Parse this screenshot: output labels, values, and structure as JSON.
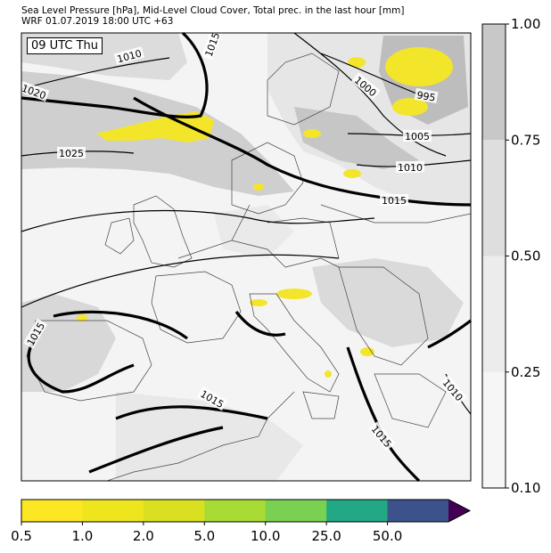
{
  "header": {
    "line1": "Sea Level Pressure [hPa], Mid-Level Cloud Cover, Total prec. in the last hour [mm]",
    "line2": "WRF 01.07.2019 18:00 UTC +63"
  },
  "map": {
    "valid_time": "09 UTC Thu",
    "isobar_labels": [
      "1010",
      "1015",
      "1020",
      "1025",
      "1000",
      "995",
      "1005",
      "1010",
      "1015",
      "1015",
      "1015",
      "1015",
      "1010"
    ]
  },
  "cloud_colorbar": {
    "ticks": [
      "1.00",
      "0.75",
      "0.50",
      "0.25",
      "0.10"
    ],
    "colors": [
      "#c8c8c8",
      "#dedede",
      "#ececec",
      "#f6f6f6"
    ]
  },
  "precip_colorbar": {
    "ticks": [
      "0.5",
      "1.0",
      "2.0",
      "5.0",
      "10.0",
      "25.0",
      "50.0"
    ],
    "colors": [
      "#fde725",
      "#eee51f",
      "#d9e01f",
      "#a8db34",
      "#7ad151",
      "#22a884",
      "#3b528b"
    ],
    "extend_color": "#440154"
  }
}
